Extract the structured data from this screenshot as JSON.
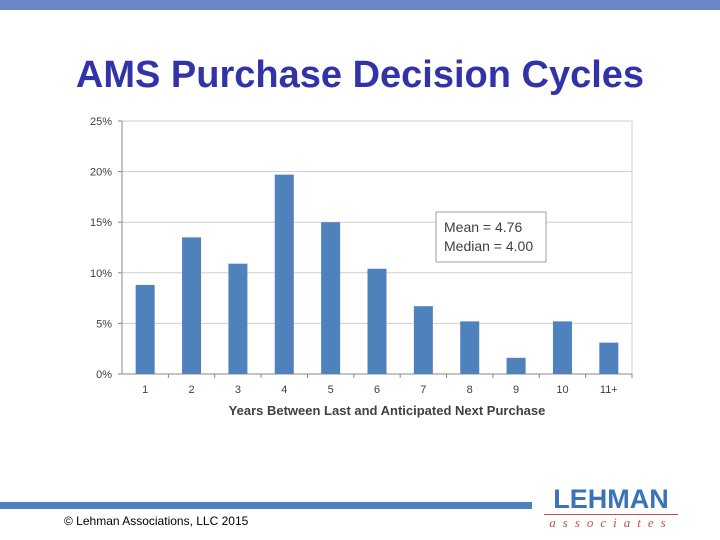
{
  "slide": {
    "title": "AMS Purchase Decision Cycles",
    "copyright": "© Lehman Associations, LLC 2015"
  },
  "logo": {
    "name": "LEHMAN",
    "sub": "associates",
    "color_primary": "#3b73b9",
    "color_accent": "#c0504d"
  },
  "colors": {
    "top_bar": "#6a86c4",
    "bottom_bar": "#4f81bd",
    "title": "#3333a8",
    "bar": "#4f81bd"
  },
  "chart_data": {
    "type": "bar",
    "categories": [
      "1",
      "2",
      "3",
      "4",
      "5",
      "6",
      "7",
      "8",
      "9",
      "10",
      "11+"
    ],
    "values": [
      8.8,
      13.5,
      10.9,
      19.7,
      15.0,
      10.4,
      6.7,
      5.2,
      1.6,
      5.2,
      3.1
    ],
    "xlabel": "Years Between Last and Anticipated Next Purchase",
    "ylabel": "",
    "ylim": [
      0,
      25
    ],
    "yticks": [
      0,
      5,
      10,
      15,
      20,
      25
    ],
    "ytick_labels": [
      "0%",
      "5%",
      "10%",
      "15%",
      "20%",
      "25%"
    ],
    "grid": true,
    "annotation": {
      "lines": [
        "Mean = 4.76",
        "Median = 4.00"
      ],
      "placement": "upper-right"
    }
  }
}
